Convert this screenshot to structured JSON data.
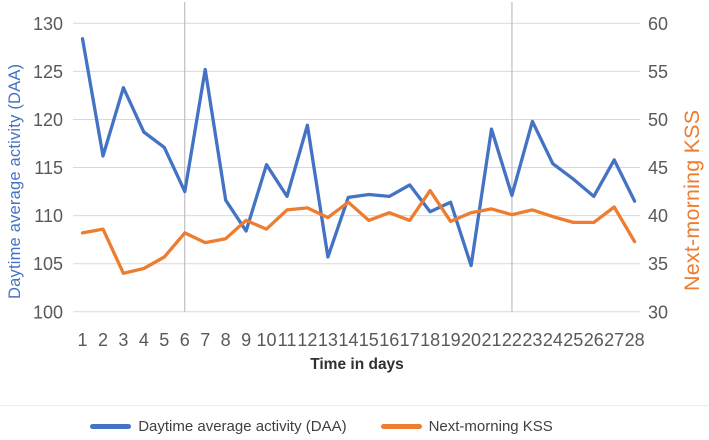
{
  "chart_data": {
    "type": "line",
    "x": [
      1,
      2,
      3,
      4,
      5,
      6,
      7,
      8,
      9,
      10,
      11,
      12,
      13,
      14,
      15,
      16,
      17,
      18,
      19,
      20,
      21,
      22,
      23,
      24,
      25,
      26,
      27,
      28
    ],
    "xlabel": "Time in days",
    "ylabel_left": "Daytime average activity (DAA)",
    "ylabel_right": "Next-morning KSS",
    "ylim_left": [
      100,
      130
    ],
    "ylim_right": [
      30,
      60
    ],
    "yticks_left": [
      100,
      105,
      110,
      115,
      120,
      125,
      130
    ],
    "yticks_right": [
      30,
      35,
      40,
      45,
      50,
      55,
      60
    ],
    "grid": {
      "horizontal": true,
      "vertical_at_days": [
        6,
        22
      ]
    },
    "legend_position": "bottom",
    "series": [
      {
        "name": "Daytime average activity (DAA)",
        "axis": "left",
        "color": "#4472C4",
        "values": [
          128.4,
          116.2,
          123.3,
          118.7,
          117.1,
          112.5,
          125.2,
          111.6,
          108.4,
          115.3,
          112.0,
          119.4,
          105.7,
          111.9,
          112.2,
          112.0,
          113.2,
          110.4,
          111.4,
          104.8,
          119.0,
          112.1,
          119.8,
          115.4,
          113.8,
          112.0,
          115.8,
          111.5
        ]
      },
      {
        "name": "Next-morning KSS",
        "axis": "right",
        "color": "#ED7D31",
        "values": [
          38.2,
          38.6,
          34.0,
          34.5,
          35.7,
          38.2,
          37.2,
          37.6,
          39.5,
          38.6,
          40.6,
          40.8,
          39.8,
          41.4,
          39.5,
          40.3,
          39.5,
          42.6,
          39.4,
          40.3,
          40.7,
          40.1,
          40.6,
          39.9,
          39.3,
          39.3,
          40.9,
          37.3
        ]
      }
    ]
  },
  "colors": {
    "grid": "#D9D9D9",
    "vgrid": "#B3B3B3",
    "tick_text": "#595959",
    "axis_title_left": "#4472C4",
    "axis_title_right": "#ED7D31",
    "xlabel_text": "#303030",
    "legend_text": "#404040"
  }
}
